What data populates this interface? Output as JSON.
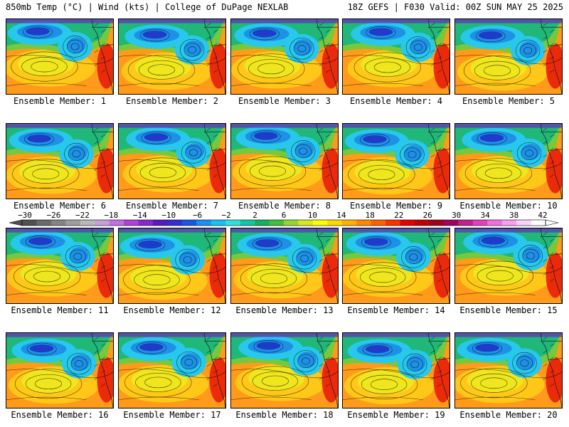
{
  "header": {
    "left": "850mb Temp (°C) | Wind (kts) | College of DuPage NEXLAB",
    "right": "18Z GEFS | F030 Valid: 00Z SUN MAY 25 2025"
  },
  "members": [
    {
      "label": "Ensemble Member: 1"
    },
    {
      "label": "Ensemble Member: 2"
    },
    {
      "label": "Ensemble Member: 3"
    },
    {
      "label": "Ensemble Member: 4"
    },
    {
      "label": "Ensemble Member: 5"
    },
    {
      "label": "Ensemble Member: 6"
    },
    {
      "label": "Ensemble Member: 7"
    },
    {
      "label": "Ensemble Member: 8"
    },
    {
      "label": "Ensemble Member: 9"
    },
    {
      "label": "Ensemble Member: 10"
    },
    {
      "label": "Ensemble Member: 11"
    },
    {
      "label": "Ensemble Member: 12"
    },
    {
      "label": "Ensemble Member: 13"
    },
    {
      "label": "Ensemble Member: 14"
    },
    {
      "label": "Ensemble Member: 15"
    },
    {
      "label": "Ensemble Member: 16"
    },
    {
      "label": "Ensemble Member: 17"
    },
    {
      "label": "Ensemble Member: 18"
    },
    {
      "label": "Ensemble Member: 19"
    },
    {
      "label": "Ensemble Member: 20"
    }
  ],
  "colorbar": {
    "tick_labels": [
      "-30",
      "-26",
      "-22",
      "-18",
      "-14",
      "-10",
      "-6",
      "-2",
      "2",
      "6",
      "10",
      "14",
      "18",
      "22",
      "26",
      "30",
      "34",
      "38",
      "42"
    ],
    "colors": [
      "#505050",
      "#6a6a6a",
      "#848484",
      "#9e9e9e",
      "#b8b8b8",
      "#c8a0d8",
      "#c070e0",
      "#b040d8",
      "#8828c8",
      "#5a18c0",
      "#3030d0",
      "#1858e0",
      "#1890f0",
      "#18c0f0",
      "#30e0e0",
      "#10c8a0",
      "#18b060",
      "#40c040",
      "#90d830",
      "#d8e820",
      "#ffff00",
      "#ffd800",
      "#ffb000",
      "#ff8800",
      "#ff6000",
      "#ff3000",
      "#e80000",
      "#c00000",
      "#a00020",
      "#a00060",
      "#c02090",
      "#e040c0",
      "#f070e0",
      "#f8a0f0",
      "#fcd0fc",
      "#ffffff"
    ]
  },
  "map_colors": {
    "deep_cold": "#1e3cc8",
    "cold": "#1e90e6",
    "cool": "#28c8ec",
    "mild": "#20b878",
    "neutral": "#78c83c",
    "warm": "#f0e61e",
    "warmer": "#ffc818",
    "hot": "#ff9a1a",
    "hottest": "#e81e0a",
    "arctic": "#6a28c0"
  }
}
